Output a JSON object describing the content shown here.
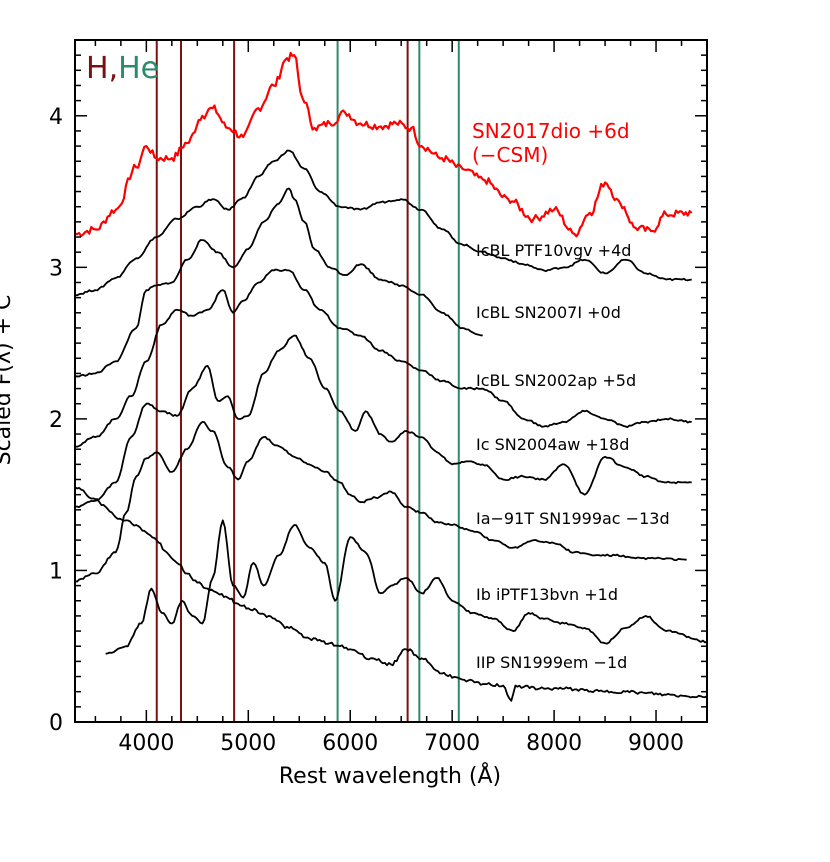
{
  "chart_data": {
    "type": "line",
    "title": "",
    "xlabel": "Rest wavelength (Å)",
    "ylabel": "Scaled F(λ) + C",
    "xlim": [
      3300,
      9500
    ],
    "ylim": [
      0,
      4.5
    ],
    "xticks": [
      4000,
      5000,
      6000,
      7000,
      8000,
      9000
    ],
    "yticks": [
      0,
      1,
      2,
      3,
      4
    ],
    "xtick_labels": [
      "4000",
      "5000",
      "6000",
      "7000",
      "8000",
      "9000"
    ],
    "ytick_labels": [
      "0",
      "1",
      "2",
      "3",
      "4"
    ],
    "legend": {
      "h_label": "H",
      "sep": ",",
      "he_label": "He",
      "h_color": "#7a1010",
      "he_color": "#2e8b6a"
    },
    "h_lines": [
      4102,
      4340,
      4861,
      6563
    ],
    "he_lines": [
      5876,
      6678,
      7065
    ],
    "series": [
      {
        "name": "SN2017dio +6d (-CSM)",
        "label_line1": "SN2017dio  +6d",
        "label_line2": "(−CSM)",
        "color": "#ff0000",
        "x": [
          3300,
          3500,
          3700,
          3900,
          4000,
          4100,
          4250,
          4400,
          4550,
          4650,
          4800,
          4950,
          5100,
          5250,
          5380,
          5450,
          5530,
          5650,
          5800,
          5950,
          6100,
          6300,
          6450,
          6600,
          6700,
          6900,
          7100,
          7300,
          7550,
          7800,
          8000,
          8200,
          8350,
          8500,
          8650,
          8800,
          8950,
          9100,
          9350
        ],
        "y": [
          3.22,
          3.25,
          3.38,
          3.66,
          3.8,
          3.72,
          3.72,
          3.82,
          4.0,
          4.05,
          3.92,
          3.86,
          4.05,
          4.2,
          4.38,
          4.4,
          4.12,
          3.92,
          3.95,
          4.02,
          3.95,
          3.93,
          3.95,
          3.92,
          3.8,
          3.72,
          3.65,
          3.58,
          3.45,
          3.32,
          3.38,
          3.22,
          3.36,
          3.56,
          3.42,
          3.26,
          3.24,
          3.35,
          3.36
        ]
      },
      {
        "name": "IcBL PTF10vgv +4d",
        "label": "IcBL  PTF10vgv  +4d",
        "color": "#000000",
        "x": [
          3300,
          3500,
          3700,
          3900,
          4100,
          4300,
          4500,
          4650,
          4800,
          4950,
          5100,
          5250,
          5400,
          5550,
          5700,
          5900,
          6100,
          6300,
          6500,
          6700,
          6900,
          7100,
          7300,
          7500,
          7700,
          7900,
          8100,
          8300,
          8500,
          8700,
          8900,
          9100,
          9350
        ],
        "y": [
          2.82,
          2.85,
          2.93,
          3.06,
          3.2,
          3.32,
          3.4,
          3.45,
          3.38,
          3.46,
          3.6,
          3.7,
          3.77,
          3.65,
          3.5,
          3.4,
          3.38,
          3.43,
          3.45,
          3.38,
          3.25,
          3.15,
          3.1,
          3.06,
          3.02,
          2.98,
          3.0,
          3.05,
          2.96,
          3.05,
          2.96,
          2.92,
          2.92
        ]
      },
      {
        "name": "IcBL SN2007I +0d",
        "label": "IcBL  SN2007I  +0d",
        "color": "#000000",
        "x": [
          3300,
          3500,
          3700,
          3900,
          4000,
          4100,
          4250,
          4400,
          4550,
          4700,
          4850,
          5000,
          5150,
          5300,
          5400,
          5450,
          5550,
          5650,
          5800,
          5950,
          6100,
          6300,
          6500,
          6700,
          6900,
          7100,
          7300
        ],
        "y": [
          2.28,
          2.3,
          2.38,
          2.6,
          2.85,
          2.88,
          2.9,
          3.05,
          3.18,
          3.1,
          3.0,
          3.12,
          3.3,
          3.42,
          3.52,
          3.45,
          3.3,
          3.12,
          3.0,
          2.95,
          3.02,
          2.92,
          2.88,
          2.82,
          2.7,
          2.6,
          2.55
        ]
      },
      {
        "name": "IcBL SN2002ap +5d",
        "label": "IcBL  SN2002ap  +5d",
        "color": "#000000",
        "x": [
          3300,
          3500,
          3700,
          3850,
          4000,
          4150,
          4300,
          4450,
          4600,
          4750,
          4850,
          4950,
          5100,
          5250,
          5400,
          5550,
          5700,
          5900,
          6100,
          6300,
          6500,
          6700,
          6900,
          7100,
          7300,
          7500,
          7700,
          7900,
          8100,
          8300,
          8500,
          8700,
          8900,
          9100,
          9350
        ],
        "y": [
          1.82,
          1.88,
          2.0,
          2.15,
          2.38,
          2.62,
          2.72,
          2.68,
          2.72,
          2.85,
          2.7,
          2.78,
          2.9,
          2.98,
          2.98,
          2.85,
          2.72,
          2.6,
          2.55,
          2.45,
          2.38,
          2.32,
          2.25,
          2.2,
          2.2,
          2.12,
          2.0,
          1.95,
          1.98,
          2.05,
          2.0,
          1.95,
          1.98,
          2.0,
          1.98
        ]
      },
      {
        "name": "Ic SN2004aw +18d",
        "label": "Ic  SN2004aw  +18d",
        "color": "#000000",
        "x": [
          3300,
          3500,
          3700,
          3850,
          4000,
          4150,
          4300,
          4450,
          4600,
          4700,
          4800,
          4900,
          5000,
          5150,
          5300,
          5450,
          5600,
          5750,
          5900,
          6050,
          6150,
          6300,
          6400,
          6550,
          6700,
          6850,
          7000,
          7150,
          7300,
          7500,
          7700,
          7900,
          8100,
          8300,
          8500,
          8700,
          8900,
          9100,
          9350
        ],
        "y": [
          1.42,
          1.46,
          1.58,
          1.88,
          2.1,
          2.05,
          2.02,
          2.2,
          2.35,
          2.12,
          2.15,
          2.0,
          2.02,
          2.3,
          2.45,
          2.55,
          2.4,
          2.2,
          2.05,
          1.92,
          2.05,
          1.9,
          1.85,
          1.92,
          1.88,
          1.78,
          1.7,
          1.72,
          1.7,
          1.6,
          1.62,
          1.6,
          1.7,
          1.5,
          1.75,
          1.68,
          1.62,
          1.58,
          1.58
        ]
      },
      {
        "name": "Ia-91T SN1999ac -13d",
        "label": "Ia−91T  SN1999ac  −13d",
        "color": "#000000",
        "x": [
          3300,
          3500,
          3700,
          3800,
          3900,
          4000,
          4100,
          4250,
          4400,
          4550,
          4650,
          4800,
          4900,
          5000,
          5150,
          5300,
          5450,
          5600,
          5750,
          5900,
          6000,
          6100,
          6250,
          6400,
          6550,
          6700,
          6850,
          7000,
          7200,
          7400,
          7600,
          7800,
          8000,
          8200,
          8400,
          8600,
          8800,
          9000,
          9300
        ],
        "y": [
          0.93,
          0.98,
          1.12,
          1.38,
          1.62,
          1.74,
          1.78,
          1.65,
          1.8,
          1.98,
          1.92,
          1.68,
          1.6,
          1.72,
          1.88,
          1.82,
          1.75,
          1.7,
          1.65,
          1.58,
          1.5,
          1.45,
          1.48,
          1.52,
          1.42,
          1.38,
          1.32,
          1.3,
          1.26,
          1.2,
          1.15,
          1.2,
          1.18,
          1.12,
          1.1,
          1.1,
          1.08,
          1.08,
          1.07
        ]
      },
      {
        "name": "Ib iPTF13bvn +1d",
        "label": "Ib  iPTF13bvn  +1d",
        "color": "#000000",
        "x": [
          3600,
          3800,
          3950,
          4050,
          4150,
          4250,
          4350,
          4450,
          4550,
          4650,
          4750,
          4850,
          4950,
          5050,
          5150,
          5300,
          5450,
          5600,
          5750,
          5850,
          6000,
          6150,
          6300,
          6400,
          6550,
          6700,
          6850,
          7000,
          7200,
          7400,
          7600,
          7750,
          7900,
          8100,
          8300,
          8500,
          8700,
          8900,
          9100,
          9500
        ],
        "y": [
          0.45,
          0.5,
          0.65,
          0.88,
          0.72,
          0.65,
          0.8,
          0.7,
          0.65,
          0.95,
          1.33,
          0.9,
          0.82,
          1.05,
          0.9,
          1.1,
          1.3,
          1.15,
          1.05,
          0.8,
          1.22,
          1.12,
          0.85,
          0.9,
          0.95,
          0.85,
          0.95,
          0.8,
          0.72,
          0.68,
          0.6,
          0.72,
          0.68,
          0.65,
          0.62,
          0.52,
          0.62,
          0.7,
          0.6,
          0.53
        ]
      },
      {
        "name": "IIP SN1999em -1d",
        "label": "IIP  SN1999em  −1d",
        "color": "#000000",
        "x": [
          3300,
          3500,
          3600,
          3700,
          3800,
          3900,
          4000,
          4100,
          4200,
          4300,
          4400,
          4500,
          4600,
          4700,
          4800,
          4900,
          5000,
          5200,
          5400,
          5600,
          5800,
          5900,
          6000,
          6200,
          6400,
          6550,
          6700,
          6900,
          7100,
          7300,
          7500,
          7580,
          7620,
          7700,
          7900,
          8100,
          8300,
          8500,
          8700,
          8900,
          9100,
          9300,
          9500
        ],
        "y": [
          1.55,
          1.47,
          1.42,
          1.35,
          1.33,
          1.3,
          1.25,
          1.2,
          1.12,
          1.05,
          0.98,
          0.92,
          0.88,
          0.85,
          0.82,
          0.78,
          0.75,
          0.7,
          0.62,
          0.55,
          0.52,
          0.5,
          0.48,
          0.42,
          0.38,
          0.48,
          0.42,
          0.32,
          0.28,
          0.25,
          0.24,
          0.14,
          0.24,
          0.23,
          0.22,
          0.22,
          0.21,
          0.2,
          0.2,
          0.19,
          0.18,
          0.17,
          0.17
        ]
      }
    ]
  }
}
